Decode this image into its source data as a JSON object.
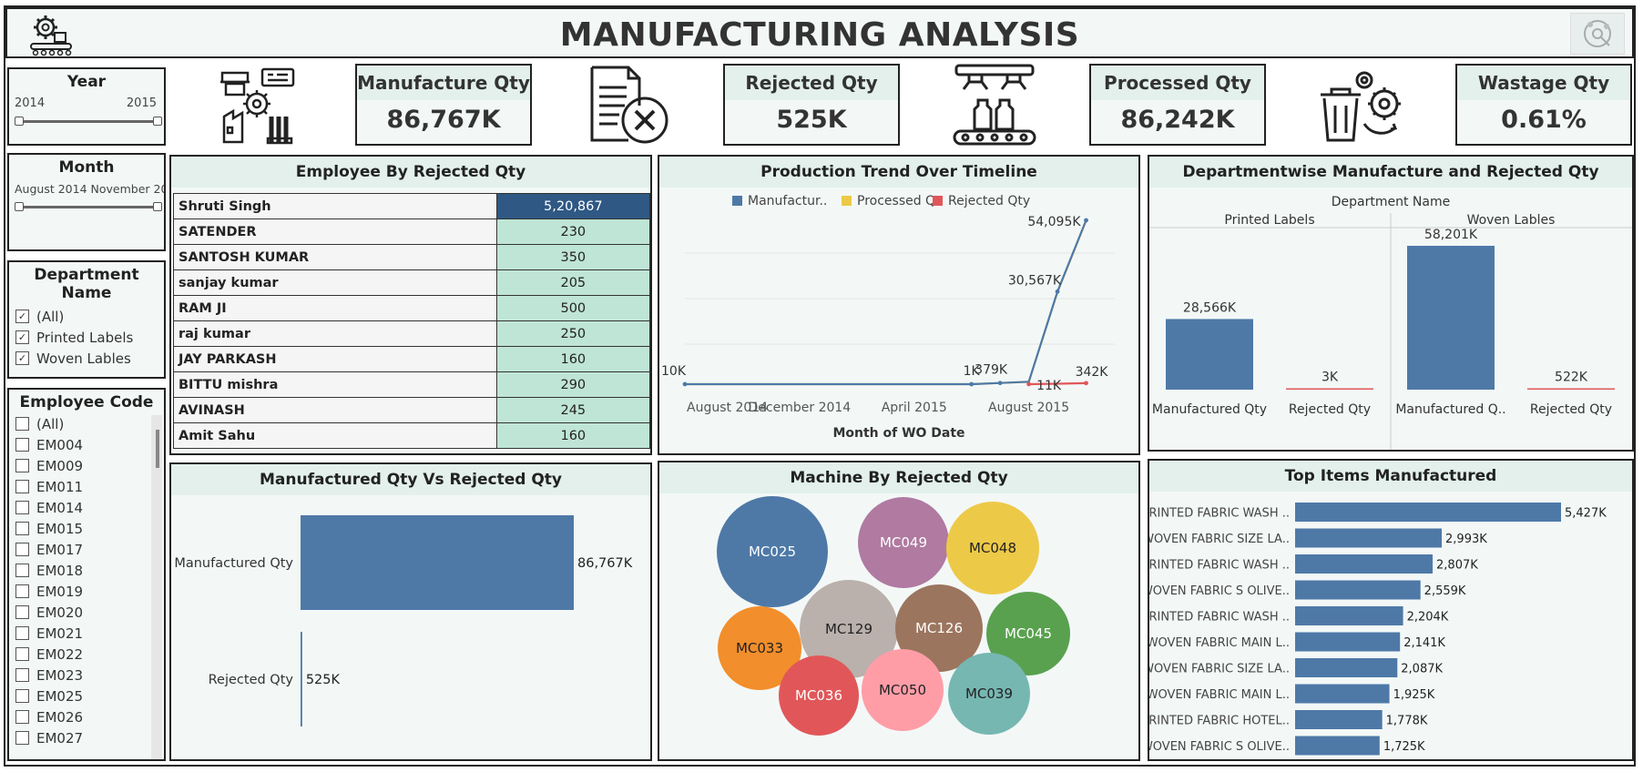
{
  "header": {
    "title": "MANUFACTURING ANALYSIS",
    "logo_icon": "factory-conveyor-gear-icon",
    "corner_icon": "tableau-share-icon"
  },
  "kpis": [
    {
      "label": "Manufacture Qty",
      "value": "86,767K",
      "icon": "factory-gear-icon"
    },
    {
      "label": "Rejected Qty",
      "value": "525K",
      "icon": "document-reject-icon"
    },
    {
      "label": "Processed Qty",
      "value": "86,242K",
      "icon": "conveyor-bottles-icon"
    },
    {
      "label": "Wastage Qty",
      "value": "0.61%",
      "icon": "trash-gear-icon"
    }
  ],
  "filters": {
    "year": {
      "title": "Year",
      "min": "2014",
      "max": "2015"
    },
    "month": {
      "title": "Month",
      "range_text": "August 2014 November 20"
    },
    "department": {
      "title": "Department Name",
      "options": [
        "(All)",
        "Printed Labels",
        "Woven Lables"
      ]
    },
    "employee": {
      "title": "Employee Code",
      "options": [
        "(All)",
        "EM004",
        "EM009",
        "EM011",
        "EM014",
        "EM015",
        "EM017",
        "EM018",
        "EM019",
        "EM020",
        "EM021",
        "EM022",
        "EM023",
        "EM025",
        "EM026",
        "EM027"
      ]
    }
  },
  "colors": {
    "blue": "#4e79a7",
    "yellow": "#edc948",
    "red": "#e15759",
    "navy": "#2f5884",
    "mint": "#bfe5d6",
    "header": "#e3f0ec"
  },
  "panels": {
    "employee": "Employee By Rejected Qty",
    "trend": "Production Trend Over Timeline",
    "dept": "Departmentwise Manufacture and Rejected Qty",
    "mvr": "Manufactured Qty Vs Rejected Qty",
    "machine": "Machine By Rejected Qty",
    "items": "Top Items Manufactured"
  },
  "chart_data": [
    {
      "type": "table",
      "title": "Employee By Rejected Qty",
      "rows": [
        {
          "name": "Shruti Singh",
          "value": "5,20,867"
        },
        {
          "name": "SATENDER",
          "value": "230"
        },
        {
          "name": "SANTOSH KUMAR",
          "value": "350"
        },
        {
          "name": "sanjay  kumar",
          "value": "205"
        },
        {
          "name": "RAM JI",
          "value": "500"
        },
        {
          "name": "raj  kumar",
          "value": "250"
        },
        {
          "name": "JAY PARKASH",
          "value": "160"
        },
        {
          "name": "BITTU mishra",
          "value": "290"
        },
        {
          "name": "AVINASH",
          "value": "245"
        },
        {
          "name": "Amit Sahu",
          "value": "160"
        }
      ]
    },
    {
      "type": "line",
      "title": "Production Trend Over Timeline",
      "xlabel": "Month of WO Date",
      "tick_labels": [
        "August 2014",
        "December 2014",
        "April 2015",
        "August 2015"
      ],
      "legend": [
        "Manufactur..",
        "Processed Q..",
        "Rejected Qty"
      ],
      "x": [
        "2014-08",
        "2014-09",
        "2014-10",
        "2014-11",
        "2014-12",
        "2015-01",
        "2015-02",
        "2015-03",
        "2015-04",
        "2015-05",
        "2015-06",
        "2015-07",
        "2015-08",
        "2015-09",
        "2015-10",
        "2015-11"
      ],
      "series": [
        {
          "name": "Manufactur..",
          "values": [
            10,
            10,
            10,
            10,
            10,
            10,
            10,
            10,
            10,
            10,
            1,
            379,
            800,
            30567,
            54095,
            null
          ]
        },
        {
          "name": "Processed Q..",
          "values": [
            10,
            10,
            10,
            10,
            10,
            10,
            10,
            10,
            10,
            10,
            1,
            379,
            790,
            30400,
            53900,
            null
          ]
        },
        {
          "name": "Rejected Qty",
          "values": [
            null,
            null,
            null,
            null,
            null,
            null,
            null,
            null,
            null,
            null,
            null,
            null,
            11,
            150,
            342,
            null
          ]
        }
      ],
      "data_labels": [
        "10K",
        "1K",
        "379K",
        "30,567K",
        "54,095K",
        "11K",
        "342K"
      ]
    },
    {
      "type": "bar",
      "title": "Departmentwise Manufacture and Rejected Qty",
      "header": "Department Name",
      "groups": [
        {
          "name": "Printed Labels",
          "categories": [
            "Manufactured Qty",
            "Rejected Qty"
          ],
          "values": [
            28566,
            3
          ],
          "labels": [
            "28,566K",
            "3K"
          ]
        },
        {
          "name": "Woven Lables",
          "categories": [
            "Manufactured Q..",
            "Rejected Qty"
          ],
          "values": [
            58201,
            522
          ],
          "labels": [
            "58,201K",
            "522K"
          ]
        }
      ]
    },
    {
      "type": "bar",
      "title": "Manufactured Qty Vs Rejected Qty",
      "categories": [
        "Manufactured Qty",
        "Rejected Qty"
      ],
      "values": [
        86767,
        525
      ],
      "labels": [
        "86,767K",
        "525K"
      ]
    },
    {
      "type": "bubble",
      "title": "Machine By Rejected Qty",
      "items": [
        {
          "name": "MC025",
          "color": "#4e79a7"
        },
        {
          "name": "MC049",
          "color": "#b07aa1"
        },
        {
          "name": "MC048",
          "color": "#edc948"
        },
        {
          "name": "MC033",
          "color": "#f28e2b"
        },
        {
          "name": "MC129",
          "color": "#bab0ac"
        },
        {
          "name": "MC126",
          "color": "#9c755f"
        },
        {
          "name": "MC045",
          "color": "#59a14f"
        },
        {
          "name": "MC036",
          "color": "#e15759"
        },
        {
          "name": "MC050",
          "color": "#ff9da7"
        },
        {
          "name": "MC039",
          "color": "#76b7b2"
        }
      ]
    },
    {
      "type": "bar",
      "title": "Top Items Manufactured",
      "categories": [
        "PRINTED FABRIC WASH ..",
        "WOVEN FABRIC SIZE LA..",
        "PRINTED FABRIC WASH ..",
        "WOVEN FABRIC S OLIVE..",
        "PRINTED FABRIC WASH ..",
        "WOVEN FABRIC MAIN L..",
        "WOVEN FABRIC SIZE LA..",
        "WOVEN FABRIC MAIN L..",
        "PRINTED FABRIC HOTEL..",
        "WOVEN FABRIC S OLIVE.."
      ],
      "values": [
        5427,
        2993,
        2807,
        2559,
        2204,
        2141,
        2087,
        1925,
        1778,
        1725
      ],
      "labels": [
        "5,427K",
        "2,993K",
        "2,807K",
        "2,559K",
        "2,204K",
        "2,141K",
        "2,087K",
        "1,925K",
        "1,778K",
        "1,725K"
      ]
    }
  ]
}
